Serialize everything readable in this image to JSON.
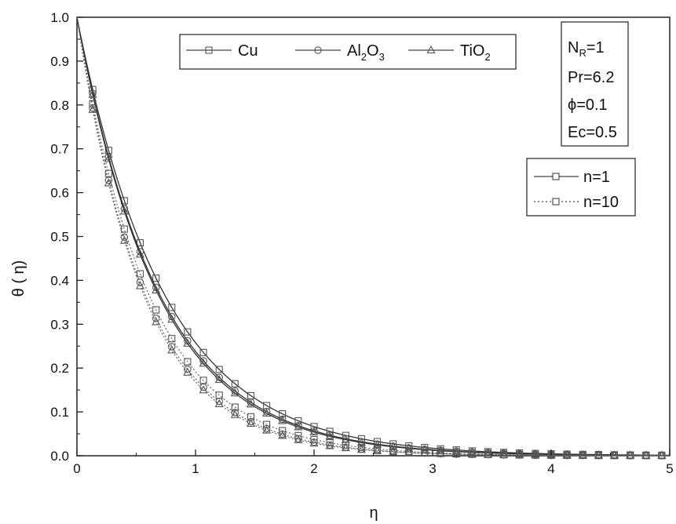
{
  "chart_data": {
    "type": "line",
    "xlabel": "η",
    "ylabel": "θ ( η)",
    "xlim": [
      0,
      5
    ],
    "ylim": [
      0,
      1.0
    ],
    "x_ticks": [
      "0",
      "1",
      "2",
      "3",
      "4",
      "5"
    ],
    "y_ticks": [
      "0.0",
      "0.1",
      "0.2",
      "0.3",
      "0.4",
      "0.5",
      "0.6",
      "0.7",
      "0.8",
      "0.9",
      "1.0"
    ],
    "grid": false,
    "legend_materials": {
      "placement": "top-center",
      "entries": [
        {
          "text": "Cu",
          "marker": "square"
        },
        {
          "text": "Al",
          "sub1": "2",
          "mid": "O",
          "sub2": "3",
          "marker": "circle"
        },
        {
          "text": "Ti",
          "mid": "O",
          "sub2": "2",
          "marker": "triangle"
        }
      ]
    },
    "legend_params": {
      "placement": "top-right",
      "lines": [
        {
          "main": "N",
          "sub": "R",
          "rest": "=1"
        },
        {
          "main": "Pr=6.2"
        },
        {
          "main": "ϕ=0.1"
        },
        {
          "main": "Ec=0.5"
        }
      ]
    },
    "legend_styles": {
      "placement": "right",
      "entries": [
        {
          "text": "n=1",
          "style": "solid"
        },
        {
          "text": "n=10",
          "style": "dotted"
        }
      ]
    },
    "x": [
      0,
      0.133,
      0.267,
      0.4,
      0.533,
      0.667,
      0.8,
      0.933,
      1.067,
      1.2,
      1.333,
      1.467,
      1.6,
      1.733,
      1.867,
      2.0,
      2.133,
      2.267,
      2.4,
      2.533,
      2.667,
      2.8,
      2.933,
      3.067,
      3.2,
      3.333,
      3.467,
      3.6,
      3.733,
      3.867,
      4.0,
      4.133,
      4.267,
      4.4,
      4.533,
      4.667,
      4.8,
      4.933
    ],
    "series": [
      {
        "marker": "square",
        "style": "solid",
        "decay": 1.355
      },
      {
        "marker": "circle",
        "style": "solid",
        "decay": 1.435
      },
      {
        "marker": "triangle",
        "style": "solid",
        "decay": 1.46
      },
      {
        "marker": "square",
        "style": "dotted",
        "decay": 1.65
      },
      {
        "marker": "circle",
        "style": "dotted",
        "decay": 1.74
      },
      {
        "marker": "triangle",
        "style": "dotted",
        "decay": 1.78
      }
    ]
  }
}
